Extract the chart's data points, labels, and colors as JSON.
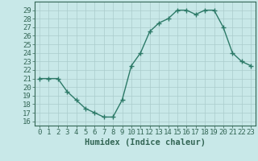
{
  "x": [
    0,
    1,
    2,
    3,
    4,
    5,
    6,
    7,
    8,
    9,
    10,
    11,
    12,
    13,
    14,
    15,
    16,
    17,
    18,
    19,
    20,
    21,
    22,
    23
  ],
  "y": [
    21,
    21,
    21,
    19.5,
    18.5,
    17.5,
    17,
    16.5,
    16.5,
    18.5,
    22.5,
    24,
    26.5,
    27.5,
    28,
    29,
    29,
    28.5,
    29,
    29,
    27,
    24,
    23,
    22.5
  ],
  "line_color": "#2d7a68",
  "marker": "+",
  "marker_size": 4,
  "background_color": "#c8e8e8",
  "grid_color": "#aacccc",
  "xlabel": "Humidex (Indice chaleur)",
  "xlim": [
    -0.5,
    23.5
  ],
  "ylim": [
    15.5,
    30.0
  ],
  "yticks": [
    16,
    17,
    18,
    19,
    20,
    21,
    22,
    23,
    24,
    25,
    26,
    27,
    28,
    29
  ],
  "xticks": [
    0,
    1,
    2,
    3,
    4,
    5,
    6,
    7,
    8,
    9,
    10,
    11,
    12,
    13,
    14,
    15,
    16,
    17,
    18,
    19,
    20,
    21,
    22,
    23
  ],
  "tick_label_fontsize": 6.5,
  "xlabel_fontsize": 7.5,
  "line_width": 1.0,
  "tick_color": "#336655",
  "spine_color": "#336655"
}
